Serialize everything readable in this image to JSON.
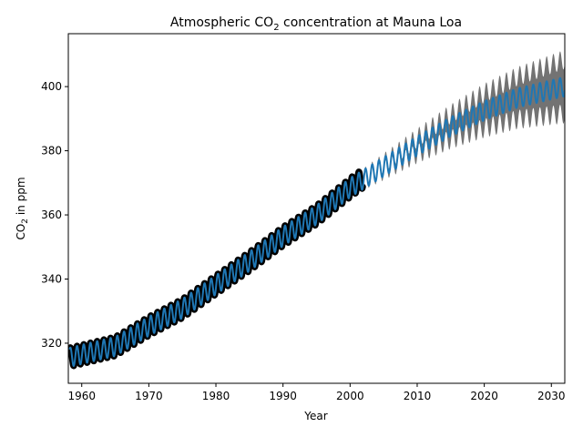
{
  "chart_data": {
    "type": "line",
    "title_main": "Atmospheric CO",
    "title_sub": "2",
    "title_rest": " concentration at Mauna Loa",
    "xlabel": "Year",
    "ylabel_main": "CO",
    "ylabel_sub": "2",
    "ylabel_rest": " in ppm",
    "xlim": [
      1958,
      2032
    ],
    "ylim": [
      307.5,
      416.5
    ],
    "xticks": [
      1960,
      1970,
      1980,
      1990,
      2000,
      2010,
      2020,
      2030
    ],
    "xtick_labels": [
      "1960",
      "1970",
      "1980",
      "1990",
      "2000",
      "2010",
      "2020",
      "2030"
    ],
    "yticks": [
      320,
      340,
      360,
      380,
      400
    ],
    "ytick_labels": [
      "320",
      "340",
      "360",
      "380",
      "400"
    ],
    "grid": false,
    "colors": {
      "observed": "#000000",
      "prediction": "#1f77b4",
      "uncertainty_band": "#000000"
    },
    "series": [
      {
        "kind": "observed",
        "start": 1958.2,
        "end": 2001.9,
        "trend_years": [
          1958,
          1965,
          1970,
          1975,
          1980,
          1985,
          1990,
          1995,
          2000,
          2002
        ],
        "trend_ppm": [
          315.5,
          319.0,
          325.3,
          330.8,
          338.2,
          345.5,
          353.3,
          360.0,
          368.5,
          371.5
        ],
        "seasonal_amplitude": 3.0
      },
      {
        "kind": "prediction",
        "start": 1958.2,
        "end": 2032.0,
        "trend_years": [
          1958,
          1965,
          1970,
          1975,
          1980,
          1985,
          1990,
          1995,
          2000,
          2005,
          2010,
          2015,
          2020,
          2025,
          2032
        ],
        "trend_ppm": [
          315.5,
          319.0,
          325.3,
          330.8,
          338.2,
          345.5,
          353.3,
          360.0,
          368.5,
          375.0,
          381.5,
          387.5,
          392.5,
          396.5,
          400.0
        ],
        "seasonal_amplitude": 3.0
      },
      {
        "kind": "uncertainty",
        "start": 2002.0,
        "end": 2032.0,
        "half_width_years": [
          2002,
          2010,
          2020,
          2032
        ],
        "half_width_ppm": [
          0.5,
          2.5,
          5.5,
          8.5
        ]
      }
    ]
  }
}
